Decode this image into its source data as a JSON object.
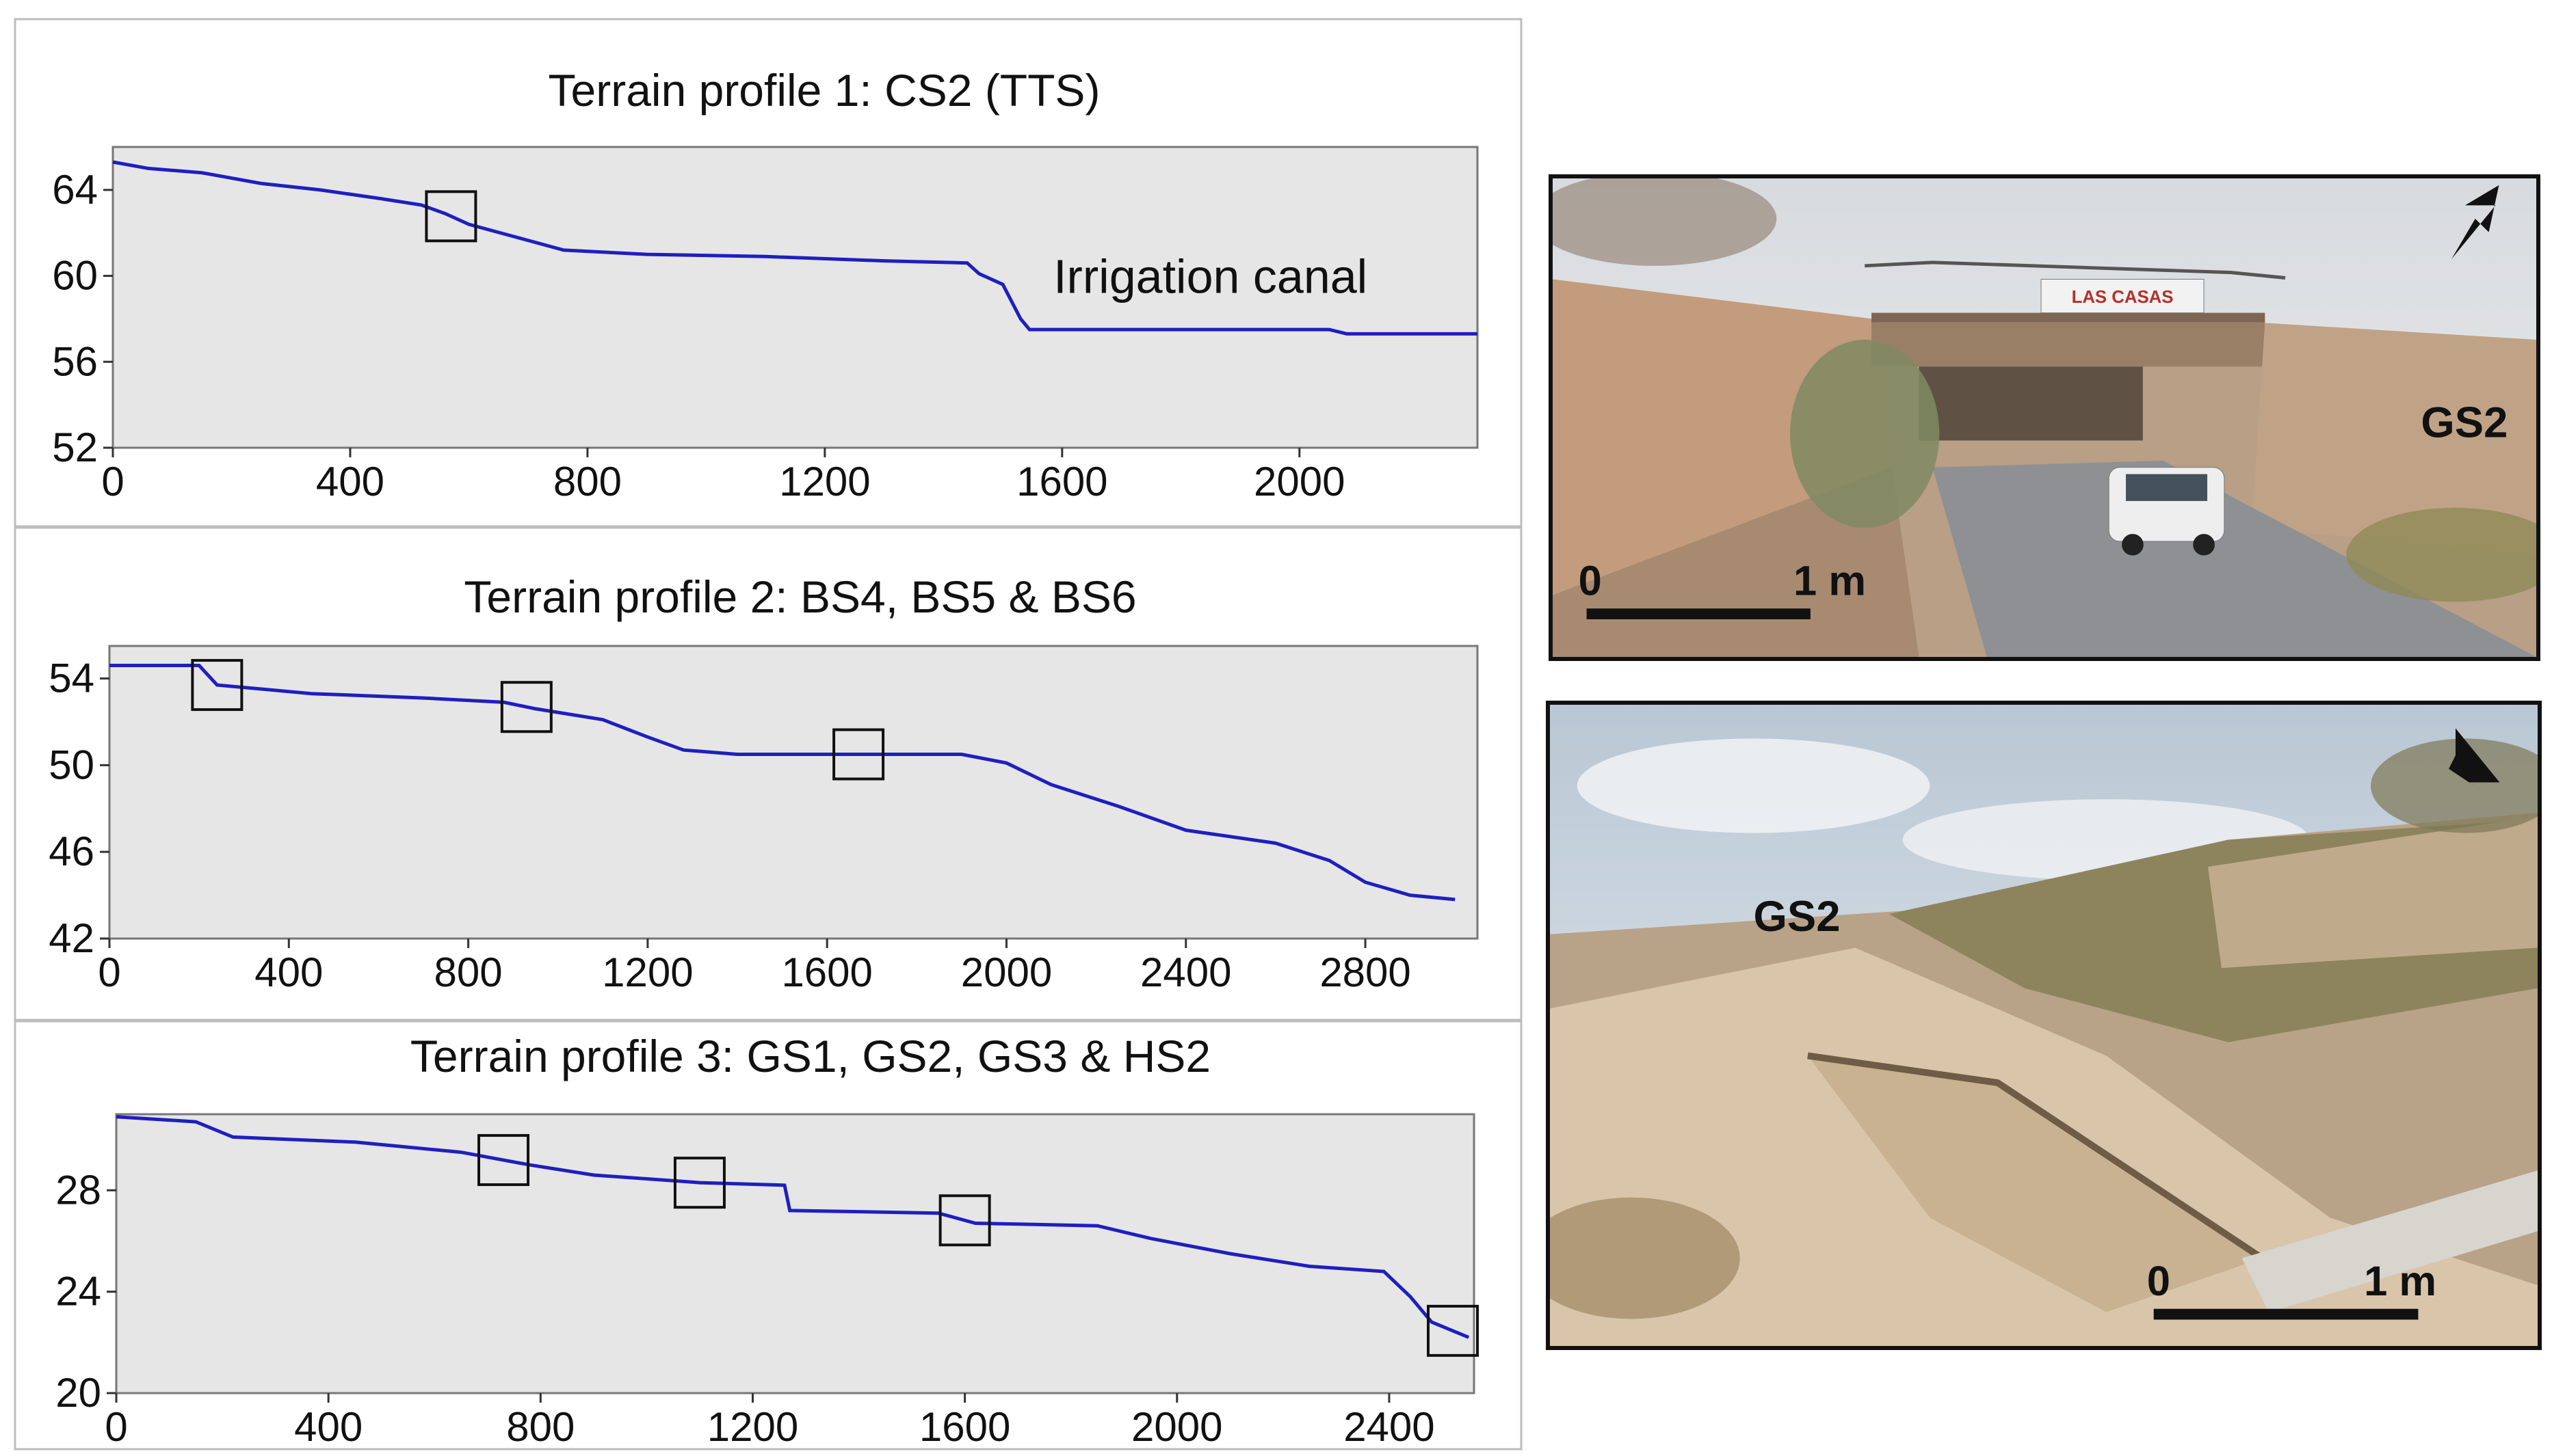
{
  "chart_data": [
    {
      "type": "line",
      "title": "Terrain profile 1: CS2 (TTS)",
      "xlabel": "",
      "ylabel": "",
      "xlim": [
        0,
        2300
      ],
      "ylim": [
        52,
        66
      ],
      "x_ticks": [
        0,
        400,
        800,
        1200,
        1600,
        2000
      ],
      "y_ticks": [
        52,
        56,
        60,
        64
      ],
      "series": [
        {
          "values": [
            [
              0,
              65.3
            ],
            [
              60,
              65.0
            ],
            [
              150,
              64.8
            ],
            [
              250,
              64.3
            ],
            [
              350,
              64.0
            ],
            [
              450,
              63.6
            ],
            [
              520,
              63.3
            ],
            [
              560,
              62.9
            ],
            [
              600,
              62.4
            ],
            [
              680,
              61.8
            ],
            [
              760,
              61.2
            ],
            [
              900,
              61.0
            ],
            [
              1100,
              60.9
            ],
            [
              1300,
              60.7
            ],
            [
              1440,
              60.6
            ],
            [
              1460,
              60.1
            ],
            [
              1500,
              59.6
            ],
            [
              1530,
              58.0
            ],
            [
              1545,
              57.5
            ],
            [
              1700,
              57.5
            ],
            [
              2050,
              57.5
            ],
            [
              2080,
              57.3
            ],
            [
              2300,
              57.3
            ]
          ]
        }
      ],
      "markers_x": [
        570
      ],
      "annotations": [
        {
          "text": "Irrigation canal",
          "x": 1850,
          "y": 59.2
        }
      ]
    },
    {
      "type": "line",
      "title": "Terrain profile 2: BS4, BS5 & BS6",
      "xlabel": "",
      "ylabel": "",
      "xlim": [
        0,
        3050
      ],
      "ylim": [
        42,
        55.5
      ],
      "x_ticks": [
        0,
        400,
        800,
        1200,
        1600,
        2000,
        2400,
        2800
      ],
      "y_ticks": [
        42,
        46,
        50,
        54
      ],
      "series": [
        {
          "values": [
            [
              0,
              54.6
            ],
            [
              200,
              54.6
            ],
            [
              240,
              53.7
            ],
            [
              450,
              53.3
            ],
            [
              700,
              53.1
            ],
            [
              880,
              52.9
            ],
            [
              950,
              52.6
            ],
            [
              1100,
              52.1
            ],
            [
              1200,
              51.3
            ],
            [
              1280,
              50.7
            ],
            [
              1400,
              50.5
            ],
            [
              1900,
              50.5
            ],
            [
              2000,
              50.1
            ],
            [
              2100,
              49.1
            ],
            [
              2250,
              48.1
            ],
            [
              2400,
              47.0
            ],
            [
              2600,
              46.4
            ],
            [
              2720,
              45.6
            ],
            [
              2800,
              44.6
            ],
            [
              2900,
              44.0
            ],
            [
              3000,
              43.8
            ]
          ]
        }
      ],
      "markers_x": [
        240,
        930,
        1670
      ]
    },
    {
      "type": "line",
      "title": "Terrain profile 3: GS1, GS2, GS3 & HS2",
      "xlabel": "",
      "ylabel": "",
      "xlim": [
        0,
        2560
      ],
      "ylim": [
        20,
        31
      ],
      "x_ticks": [
        0,
        400,
        800,
        1200,
        1600,
        2000,
        2400
      ],
      "y_ticks": [
        20,
        24,
        28
      ],
      "series": [
        {
          "values": [
            [
              0,
              30.9
            ],
            [
              150,
              30.7
            ],
            [
              220,
              30.1
            ],
            [
              450,
              29.9
            ],
            [
              650,
              29.5
            ],
            [
              780,
              29.0
            ],
            [
              900,
              28.6
            ],
            [
              1100,
              28.3
            ],
            [
              1260,
              28.2
            ],
            [
              1270,
              27.2
            ],
            [
              1550,
              27.1
            ],
            [
              1620,
              26.7
            ],
            [
              1850,
              26.6
            ],
            [
              1950,
              26.1
            ],
            [
              2100,
              25.5
            ],
            [
              2250,
              25.0
            ],
            [
              2390,
              24.8
            ],
            [
              2440,
              23.8
            ],
            [
              2480,
              22.8
            ],
            [
              2550,
              22.2
            ]
          ]
        }
      ],
      "markers_x": [
        730,
        1100,
        1600,
        2520
      ]
    }
  ],
  "photos": [
    {
      "label": "GS2",
      "scale_start": "0",
      "scale_end": "1 m",
      "arrow": "north-arrow",
      "sign": "LAS CASAS"
    },
    {
      "label": "GS2",
      "scale_start": "0",
      "scale_end": "1 m",
      "arrow": "north-arrow"
    }
  ],
  "colors": {
    "series": "#1f1fbf",
    "plot_background": "#e6e6e6",
    "marker_box": "#111111",
    "panel_border": "#bdbdbd"
  }
}
